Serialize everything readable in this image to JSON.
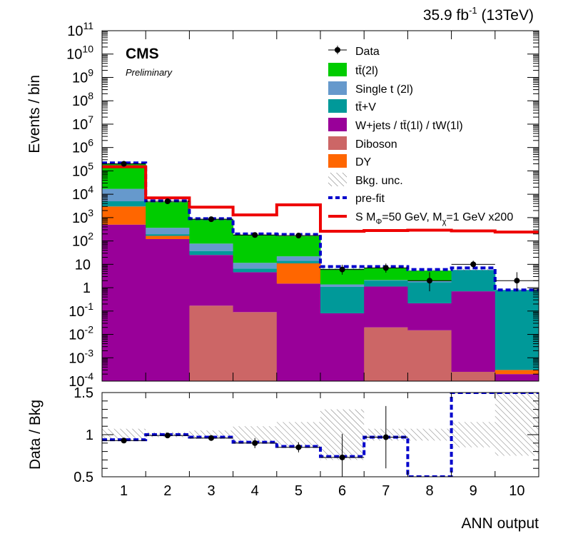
{
  "header": {
    "lumi": "35.9 fb",
    "lumi_exp": "-1",
    "energy": " (13TeV)"
  },
  "cms": {
    "label": "CMS",
    "sublabel": "Preliminary"
  },
  "chart_data": {
    "type": "bar",
    "stacked": true,
    "x_scale": "categorical",
    "y_scale": "log",
    "xlabel": "ANN output",
    "ylabel": "Events / bin",
    "ratio_ylabel": "Data / Bkg",
    "categories": [
      "1",
      "2",
      "3",
      "4",
      "5",
      "6",
      "7",
      "8",
      "9",
      "10"
    ],
    "ylim": [
      0.0001,
      100000000000
    ],
    "ratio_ylim": [
      0.5,
      1.5
    ],
    "y_ticks": [
      {
        "v": 100000000000,
        "m": "10",
        "e": "11"
      },
      {
        "v": 10000000000,
        "m": "10",
        "e": "10"
      },
      {
        "v": 1000000000,
        "m": "10",
        "e": "9"
      },
      {
        "v": 100000000,
        "m": "10",
        "e": "8"
      },
      {
        "v": 10000000,
        "m": "10",
        "e": "7"
      },
      {
        "v": 1000000,
        "m": "10",
        "e": "6"
      },
      {
        "v": 100000,
        "m": "10",
        "e": "5"
      },
      {
        "v": 10000,
        "m": "10",
        "e": "4"
      },
      {
        "v": 1000,
        "m": "10",
        "e": "3"
      },
      {
        "v": 100,
        "m": "10",
        "e": "2"
      },
      {
        "v": 10,
        "m": "10",
        "e": ""
      },
      {
        "v": 1,
        "m": "1",
        "e": ""
      },
      {
        "v": 0.1,
        "m": "10",
        "e": "-1"
      },
      {
        "v": 0.01,
        "m": "10",
        "e": "-2"
      },
      {
        "v": 0.001,
        "m": "10",
        "e": "-3"
      },
      {
        "v": 0.0001,
        "m": "10",
        "e": "-4"
      }
    ],
    "ratio_ticks": [
      "0.5",
      "1",
      "1.5"
    ],
    "stack_order": [
      "Diboson",
      "W+jets / tt̄(1l) / tW(1l)",
      "DY",
      "tt̄+V",
      "Single t (2l)",
      "tt̄(2l)"
    ],
    "series": [
      {
        "name": "Diboson",
        "color": "#cc6666",
        "values": [
          0.0001,
          0.0001,
          0.17,
          0.09,
          0.0001,
          0.0001,
          0.02,
          0.015,
          0.00025,
          0.0001
        ]
      },
      {
        "name": "W+jets / tt̄(1l) / tW(1l)",
        "color": "#990099",
        "values": [
          500,
          120,
          25,
          4.5,
          1.5,
          0.08,
          1.1,
          0.2,
          0.7,
          0.0001
        ]
      },
      {
        "name": "DY",
        "color": "#ff6600",
        "values": [
          2500,
          45,
          0.0001,
          0.0001,
          9.5,
          0.0001,
          0.0001,
          0.0001,
          0.0001,
          0.0001
        ]
      },
      {
        "name": "tt̄+V",
        "color": "#009999",
        "values": [
          2000,
          30,
          12,
          2,
          3,
          1.0,
          0.9,
          1.5,
          5,
          0.8
        ]
      },
      {
        "name": "Single t (2l)",
        "color": "#6699cc",
        "values": [
          12000,
          170,
          40,
          5,
          8,
          0.3,
          0.1,
          0.2,
          0.1,
          0.0001
        ]
      },
      {
        "name": "tt̄(2l)",
        "color": "#00cc00",
        "values": [
          180000,
          4300,
          750,
          170,
          140,
          5,
          5,
          3.5,
          0.0001,
          0.0001
        ]
      }
    ],
    "data": {
      "name": "Data",
      "values": [
        200000,
        5000,
        850,
        180,
        170,
        6,
        7,
        2,
        10,
        2
      ],
      "err_low": [
        450,
        70,
        29,
        13,
        13,
        2.4,
        2.6,
        1.3,
        3.1,
        1.3
      ],
      "err_high": [
        450,
        71,
        30,
        14,
        14,
        3.6,
        3.8,
        2.6,
        4.3,
        2.6
      ]
    },
    "prefit": {
      "name": "pre-fit",
      "color": "#0000cc",
      "values": [
        220000,
        5200,
        900,
        200,
        190,
        8,
        8,
        6,
        7,
        0.8
      ]
    },
    "signal": {
      "name": "S M",
      "name_sub1": "Φ",
      "name_mid": "=50 GeV, M",
      "name_sub2": "χ",
      "name_tail": "=1 GeV x200",
      "color": "#ee0000",
      "values": [
        150000,
        7000,
        2800,
        1300,
        3500,
        260,
        280,
        290,
        270,
        240
      ]
    },
    "bkg_unc": {
      "name": "Bkg. unc."
    },
    "ratio": {
      "data": [
        0.93,
        0.99,
        0.96,
        0.9,
        0.85,
        0.73,
        0.97,
        null,
        null,
        null
      ],
      "data_err": [
        0.02,
        0.02,
        0.03,
        0.06,
        0.06,
        0.28,
        0.37,
        0,
        0,
        0
      ],
      "prefit": [
        0.94,
        1.0,
        0.97,
        0.91,
        0.86,
        0.74,
        0.97,
        0.5,
        1.5,
        1.5
      ],
      "unc_low": [
        0.93,
        0.97,
        0.95,
        0.9,
        0.85,
        0.7,
        0.93,
        0.93,
        0.85,
        0.75
      ],
      "unc_high": [
        1.07,
        1.03,
        1.05,
        1.1,
        1.15,
        1.3,
        1.07,
        1.07,
        1.15,
        1.5
      ]
    },
    "legend_position": "top-right"
  }
}
